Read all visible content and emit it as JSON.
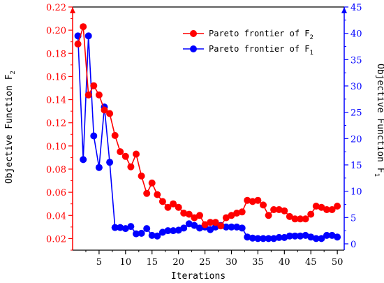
{
  "chart_data": {
    "type": "line",
    "xlabel": "Iterations",
    "x_ticks": [
      5,
      10,
      15,
      20,
      25,
      30,
      35,
      40,
      45,
      50
    ],
    "xlim": [
      0,
      51.3
    ],
    "left_axis": {
      "label_main": "Objective Function F",
      "label_sub": "2",
      "ylim": [
        0.01,
        0.22
      ],
      "ticks": [
        "0.02",
        "0.04",
        "0.06",
        "0.08",
        "0.10",
        "0.12",
        "0.14",
        "0.16",
        "0.18",
        "0.20",
        "0.22"
      ],
      "color": "#ff0000"
    },
    "right_axis": {
      "label_main": "Objective Function F",
      "label_sub": "1",
      "ylim": [
        -1.2,
        45
      ],
      "ticks": [
        "0",
        "5",
        "10",
        "15",
        "20",
        "25",
        "30",
        "35",
        "40",
        "45"
      ],
      "color": "#0000ff"
    },
    "legend": {
      "placement": "top-right",
      "entries": [
        {
          "main": "Pareto frontier of F",
          "sub": "2",
          "color": "#ff0000"
        },
        {
          "main": "Pareto frontier of F",
          "sub": "1",
          "color": "#0000ff"
        }
      ]
    },
    "series": [
      {
        "name": "Pareto frontier of F2",
        "axis": "left",
        "color": "#ff0000",
        "x": [
          1,
          2,
          3,
          4,
          5,
          6,
          7,
          8,
          9,
          10,
          11,
          12,
          13,
          14,
          15,
          16,
          17,
          18,
          19,
          20,
          21,
          22,
          23,
          24,
          25,
          26,
          27,
          28,
          29,
          30,
          31,
          32,
          33,
          34,
          35,
          36,
          37,
          38,
          39,
          40,
          41,
          42,
          43,
          44,
          45,
          46,
          47,
          48,
          49,
          50
        ],
        "y": [
          0.188,
          0.203,
          0.144,
          0.152,
          0.144,
          0.131,
          0.128,
          0.109,
          0.095,
          0.091,
          0.082,
          0.093,
          0.074,
          0.059,
          0.068,
          0.058,
          0.052,
          0.047,
          0.05,
          0.047,
          0.042,
          0.041,
          0.038,
          0.04,
          0.032,
          0.034,
          0.034,
          0.031,
          0.038,
          0.04,
          0.042,
          0.043,
          0.053,
          0.052,
          0.053,
          0.049,
          0.04,
          0.045,
          0.045,
          0.044,
          0.039,
          0.037,
          0.037,
          0.037,
          0.041,
          0.048,
          0.047,
          0.045,
          0.045,
          0.048
        ]
      },
      {
        "name": "Pareto frontier of F1",
        "axis": "right",
        "color": "#0000ff",
        "x": [
          1,
          2,
          3,
          4,
          5,
          6,
          7,
          8,
          9,
          10,
          11,
          12,
          13,
          14,
          15,
          16,
          17,
          18,
          19,
          20,
          21,
          22,
          23,
          24,
          25,
          26,
          27,
          28,
          29,
          30,
          31,
          32,
          33,
          34,
          35,
          36,
          37,
          38,
          39,
          40,
          41,
          42,
          43,
          44,
          45,
          46,
          47,
          48,
          49,
          50
        ],
        "y": [
          39.5,
          16.0,
          39.5,
          20.5,
          14.5,
          26.0,
          15.5,
          3.1,
          3.1,
          2.9,
          3.3,
          1.9,
          2.0,
          2.9,
          1.6,
          1.5,
          2.2,
          2.5,
          2.5,
          2.6,
          3.0,
          3.8,
          3.5,
          3.0,
          3.2,
          2.7,
          3.2,
          3.5,
          3.2,
          3.2,
          3.2,
          3.0,
          1.3,
          1.1,
          1.0,
          1.0,
          1.0,
          1.0,
          1.2,
          1.2,
          1.5,
          1.5,
          1.5,
          1.6,
          1.3,
          1.0,
          1.0,
          1.6,
          1.6,
          1.3
        ]
      }
    ]
  }
}
